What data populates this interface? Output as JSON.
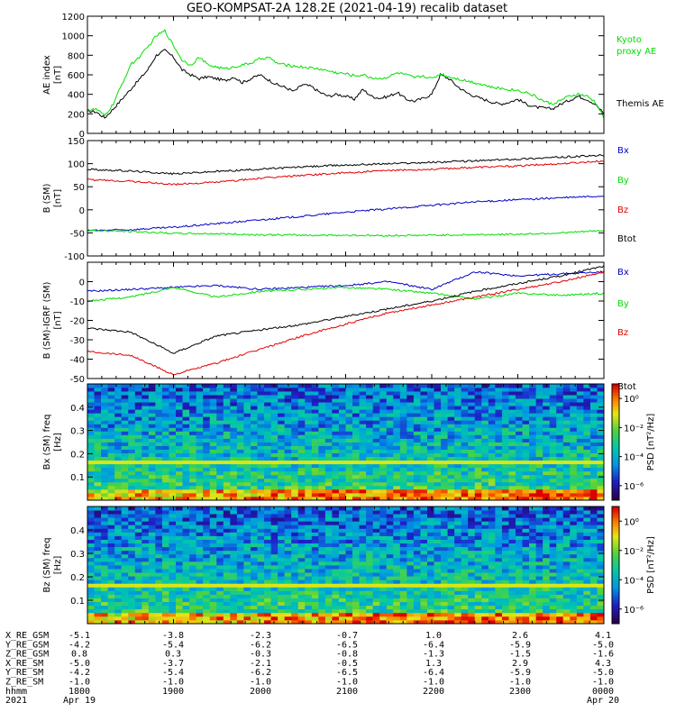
{
  "title": "GEO-KOMPSAT-2A 128.2E (2021-04-19) recalib dataset",
  "time_axis": {
    "start_hhmm": 1800,
    "end_hhmm": 2400
  },
  "chart_data": [
    {
      "type": "line",
      "ylabel": "AE index [nT]",
      "ylim": [
        0,
        1200
      ],
      "yticks": [
        0,
        200,
        400,
        600,
        800,
        1000,
        1200
      ],
      "series": [
        {
          "name": "Themis AE",
          "color": "#000000",
          "x": [
            18.0,
            18.1,
            18.2,
            18.3,
            18.4,
            18.5,
            18.6,
            18.7,
            18.8,
            18.9,
            19.0,
            19.1,
            19.2,
            19.3,
            19.4,
            19.5,
            19.6,
            19.7,
            19.8,
            19.9,
            20.0,
            20.1,
            20.2,
            20.3,
            20.4,
            20.5,
            20.6,
            20.7,
            20.8,
            20.9,
            21.0,
            21.1,
            21.2,
            21.3,
            21.4,
            21.5,
            21.6,
            21.7,
            21.8,
            21.9,
            22.0,
            22.1,
            22.2,
            22.3,
            22.4,
            22.5,
            22.6,
            22.7,
            22.8,
            22.9,
            23.0,
            23.1,
            23.2,
            23.3,
            23.4,
            23.5,
            23.6,
            23.7,
            23.8,
            23.9,
            24.0
          ],
          "values": [
            230,
            220,
            160,
            250,
            350,
            450,
            550,
            650,
            800,
            850,
            780,
            650,
            600,
            560,
            580,
            560,
            540,
            580,
            520,
            560,
            600,
            550,
            500,
            470,
            430,
            500,
            480,
            420,
            380,
            400,
            380,
            350,
            450,
            380,
            360,
            380,
            420,
            350,
            330,
            360,
            400,
            600,
            560,
            480,
            420,
            380,
            350,
            320,
            300,
            320,
            350,
            300,
            270,
            260,
            250,
            300,
            340,
            380,
            350,
            300,
            200
          ]
        },
        {
          "name": "Kyoto proxy AE",
          "color": "#00e000",
          "x": [
            18.0,
            18.1,
            18.2,
            18.3,
            18.4,
            18.5,
            18.6,
            18.7,
            18.8,
            18.9,
            19.0,
            19.1,
            19.2,
            19.3,
            19.4,
            19.5,
            19.6,
            19.7,
            19.8,
            19.9,
            20.0,
            20.1,
            20.2,
            20.3,
            20.4,
            20.5,
            20.6,
            20.7,
            20.8,
            20.9,
            21.0,
            21.1,
            21.2,
            21.3,
            21.4,
            21.5,
            21.6,
            21.7,
            21.8,
            21.9,
            22.0,
            22.1,
            22.2,
            22.3,
            22.4,
            22.5,
            22.6,
            22.7,
            22.8,
            22.9,
            23.0,
            23.1,
            23.2,
            23.3,
            23.4,
            23.5,
            23.6,
            23.7,
            23.8,
            23.9,
            24.0
          ],
          "values": [
            230,
            250,
            180,
            300,
            500,
            700,
            780,
            880,
            1000,
            1050,
            900,
            750,
            700,
            780,
            700,
            680,
            660,
            680,
            700,
            720,
            760,
            780,
            720,
            700,
            690,
            680,
            670,
            660,
            640,
            620,
            610,
            590,
            600,
            570,
            560,
            580,
            620,
            600,
            570,
            590,
            560,
            610,
            580,
            560,
            540,
            520,
            500,
            470,
            460,
            450,
            440,
            420,
            380,
            330,
            300,
            340,
            380,
            400,
            380,
            320,
            160
          ]
        }
      ],
      "legend": [
        "Kyoto proxy AE",
        "Themis AE"
      ]
    },
    {
      "type": "line",
      "ylabel": "B (SM) [nT]",
      "ylim": [
        -100,
        150
      ],
      "yticks": [
        -100,
        -50,
        0,
        50,
        100,
        150
      ],
      "series": [
        {
          "name": "Bx",
          "color": "#0000c8",
          "x": [
            18.0,
            18.5,
            19.0,
            19.5,
            20.0,
            20.5,
            21.0,
            21.5,
            22.0,
            22.5,
            23.0,
            23.5,
            24.0
          ],
          "values": [
            -45,
            -43,
            -38,
            -30,
            -22,
            -14,
            -5,
            2,
            10,
            17,
            22,
            26,
            30
          ]
        },
        {
          "name": "By",
          "color": "#00e000",
          "x": [
            18.0,
            18.5,
            19.0,
            19.5,
            20.0,
            20.5,
            21.0,
            21.5,
            22.0,
            22.5,
            23.0,
            23.5,
            24.0
          ],
          "values": [
            -45,
            -47,
            -51,
            -52,
            -54,
            -55,
            -55,
            -56,
            -55,
            -54,
            -53,
            -50,
            -45
          ]
        },
        {
          "name": "Bz",
          "color": "#e00000",
          "x": [
            18.0,
            18.5,
            19.0,
            19.5,
            20.0,
            20.5,
            21.0,
            21.5,
            22.0,
            22.5,
            23.0,
            23.5,
            24.0
          ],
          "values": [
            65,
            62,
            55,
            60,
            68,
            75,
            80,
            85,
            88,
            92,
            95,
            100,
            106
          ]
        },
        {
          "name": "Btot",
          "color": "#000000",
          "x": [
            18.0,
            18.5,
            19.0,
            19.5,
            20.0,
            20.5,
            21.0,
            21.5,
            22.0,
            22.5,
            23.0,
            23.5,
            24.0
          ],
          "values": [
            88,
            84,
            78,
            83,
            88,
            93,
            97,
            100,
            103,
            106,
            110,
            114,
            118
          ]
        }
      ],
      "legend": [
        "Bx",
        "By",
        "Bz",
        "Btot"
      ]
    },
    {
      "type": "line",
      "ylabel": "B (SM)-IGRF (SM) [nT]",
      "ylim": [
        -50,
        10
      ],
      "yticks": [
        -50,
        -40,
        -30,
        -20,
        -10,
        0
      ],
      "series": [
        {
          "name": "Bx",
          "color": "#0000c8",
          "x": [
            18.0,
            18.5,
            19.0,
            19.5,
            20.0,
            20.5,
            21.0,
            21.5,
            22.0,
            22.5,
            23.0,
            23.5,
            24.0
          ],
          "values": [
            -5,
            -4,
            -3,
            -2,
            -4,
            -3,
            -2,
            0,
            -4,
            5,
            3,
            4,
            5
          ]
        },
        {
          "name": "By",
          "color": "#00e000",
          "x": [
            18.0,
            18.5,
            19.0,
            19.5,
            20.0,
            20.5,
            21.0,
            21.5,
            22.0,
            22.5,
            23.0,
            23.5,
            24.0
          ],
          "values": [
            -10,
            -8,
            -3,
            -8,
            -5,
            -4,
            -3,
            -4,
            -6,
            -9,
            -6,
            -7,
            -6
          ]
        },
        {
          "name": "Bz",
          "color": "#e00000",
          "x": [
            18.0,
            18.5,
            19.0,
            19.5,
            20.0,
            20.5,
            21.0,
            21.5,
            22.0,
            22.5,
            23.0,
            23.5,
            24.0
          ],
          "values": [
            -36,
            -38,
            -48,
            -42,
            -35,
            -28,
            -22,
            -16,
            -12,
            -8,
            -4,
            0,
            5
          ]
        },
        {
          "name": "Btot",
          "color": "#000000",
          "x": [
            18.0,
            18.5,
            19.0,
            19.5,
            20.0,
            20.5,
            21.0,
            21.5,
            22.0,
            22.5,
            23.0,
            23.5,
            24.0
          ],
          "values": [
            -24,
            -26,
            -37,
            -28,
            -25,
            -22,
            -18,
            -14,
            -10,
            -5,
            -1,
            3,
            8
          ]
        }
      ],
      "legend": [
        "Bx",
        "By",
        "Bz",
        "Btot"
      ]
    },
    {
      "type": "heatmap",
      "ylabel": "Bx (SM) freq [Hz]",
      "ylim": [
        0,
        0.5
      ],
      "yticks": [
        0.1,
        0.2,
        0.3,
        0.4
      ],
      "colorbar_label": "PSD [nT²/Hz]",
      "colorbar_ticks": [
        "10⁰",
        "10⁻²",
        "10⁻⁴",
        "10⁻⁶"
      ],
      "color_range_log10": [
        -7,
        1
      ],
      "bright_line_hz": 0.167
    },
    {
      "type": "heatmap",
      "ylabel": "Bz (SM) freq [Hz]",
      "ylim": [
        0,
        0.5
      ],
      "yticks": [
        0.1,
        0.2,
        0.3,
        0.4
      ],
      "colorbar_label": "PSD [nT²/Hz]",
      "colorbar_ticks": [
        "10⁰",
        "10⁻²",
        "10⁻⁴",
        "10⁻⁶"
      ],
      "color_range_log10": [
        -7,
        1
      ],
      "bright_line_hz": 0.167
    }
  ],
  "ephemeris": {
    "row_labels": [
      "X_RE_GSM",
      "Y_RE_GSM",
      "Z_RE_GSM",
      "X_RE_SM",
      "Y_RE_SM",
      "Z_RE_SM",
      "hhmm",
      "2021"
    ],
    "columns": [
      {
        "values": [
          "-5.1",
          "-4.2",
          "0.8",
          "-5.0",
          "-4.2",
          "-1.0",
          "1800",
          "Apr 19"
        ]
      },
      {
        "values": [
          "-3.8",
          "-5.4",
          "0.3",
          "-3.7",
          "-5.4",
          "-1.0",
          "1900",
          ""
        ]
      },
      {
        "values": [
          "-2.3",
          "-6.2",
          "-0.3",
          "-2.1",
          "-6.2",
          "-1.0",
          "2000",
          ""
        ]
      },
      {
        "values": [
          "-0.7",
          "-6.5",
          "-0.8",
          "-0.5",
          "-6.5",
          "-1.0",
          "2100",
          ""
        ]
      },
      {
        "values": [
          "1.0",
          "-6.4",
          "-1.3",
          "1.3",
          "-6.4",
          "-1.0",
          "2200",
          ""
        ]
      },
      {
        "values": [
          "2.6",
          "-5.9",
          "-1.5",
          "2.9",
          "-5.9",
          "-1.0",
          "2300",
          ""
        ]
      },
      {
        "values": [
          "4.1",
          "-5.0",
          "-1.6",
          "4.3",
          "-5.0",
          "-1.0",
          "0000",
          "Apr 20"
        ]
      }
    ]
  }
}
